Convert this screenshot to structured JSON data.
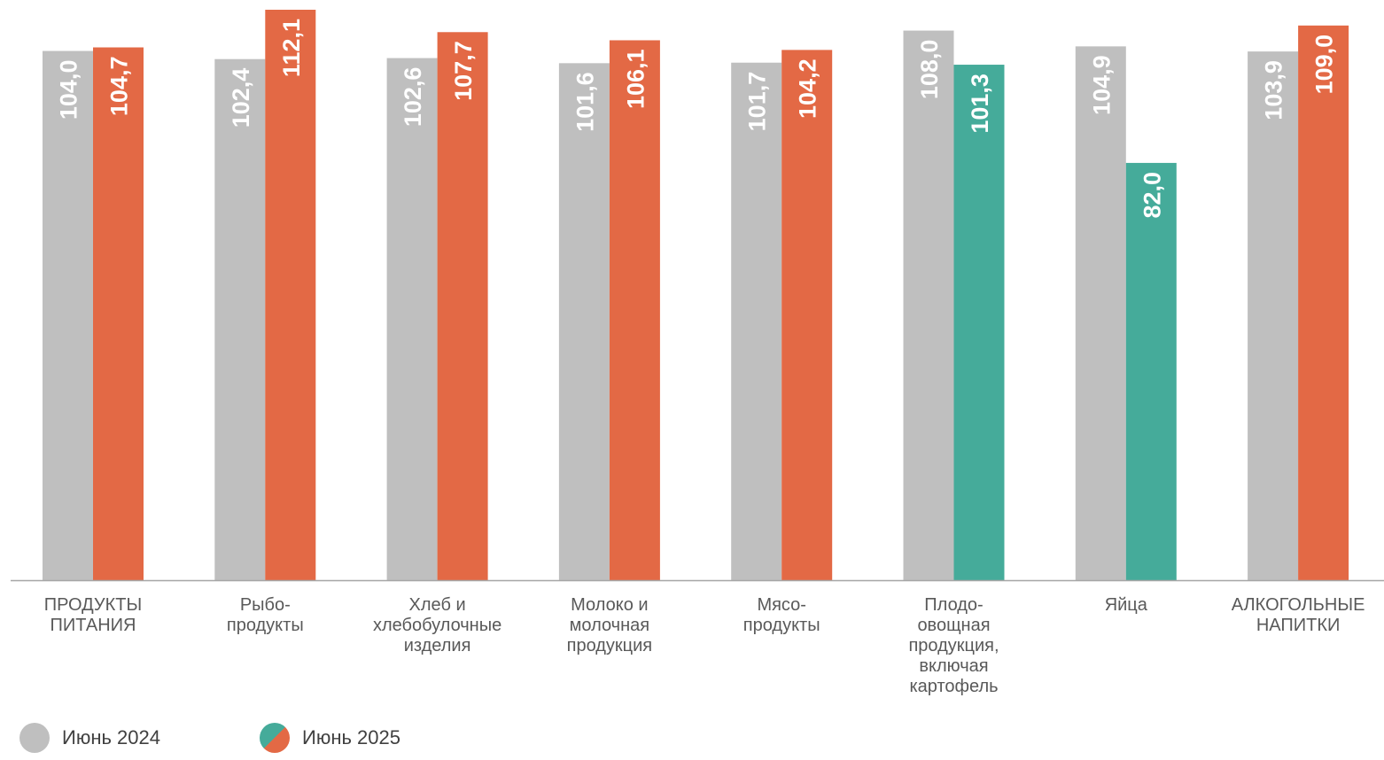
{
  "chart_data": {
    "type": "bar",
    "categories": [
      "ПРОДУКТЫ\nПИТАНИЯ",
      "Рыбо-\nпродукты",
      "Хлеб и\nхлебобулочные\nизделия",
      "Молоко и\nмолочная\nпродукция",
      "Мясо-\nпродукты",
      "Плодо-\nовощная\nпродукция,\nвключая\nкартофель",
      "Яйца",
      "АЛКОГОЛЬНЫЕ\nНАПИТКИ"
    ],
    "series": [
      {
        "name": "Июнь 2024",
        "values": [
          104.0,
          102.4,
          102.6,
          101.6,
          101.7,
          108.0,
          104.9,
          103.9
        ],
        "labels": [
          "104,0",
          "102,4",
          "102,6",
          "101,6",
          "101,7",
          "108,0",
          "104,9",
          "103,9"
        ],
        "color": "#bfbfbf"
      },
      {
        "name": "Июнь 2025",
        "values": [
          104.7,
          112.1,
          107.7,
          106.1,
          104.2,
          101.3,
          82.0,
          109.0
        ],
        "labels": [
          "104,7",
          "112,1",
          "107,7",
          "106,1",
          "104,2",
          "101,3",
          "82,0",
          "109,0"
        ],
        "color": "#e36945",
        "decrease_color": "#45ab9a"
      }
    ],
    "title": "",
    "xlabel": "",
    "ylabel": "",
    "legend_position": "bottom-left",
    "grid": false
  },
  "legend": {
    "item1": "Июнь 2024",
    "item2": "Июнь 2025"
  }
}
